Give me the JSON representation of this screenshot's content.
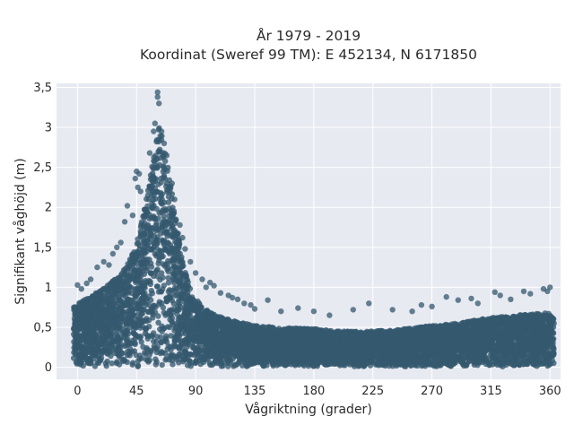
{
  "chart_data": {
    "type": "scatter",
    "title": [
      "År 1979 - 2019",
      "Koordinat (Sweref 99 TM): E 452134, N 6171850"
    ],
    "xlabel": "Vågriktning (grader)",
    "ylabel": "Signifikant våghöjd (m)",
    "xlim": [
      -16,
      368
    ],
    "ylim": [
      -0.15,
      3.55
    ],
    "x_ticks": [
      0,
      45,
      90,
      135,
      180,
      225,
      270,
      315,
      360
    ],
    "x_tick_labels": [
      "0",
      "45",
      "90",
      "135",
      "180",
      "225",
      "270",
      "315",
      "360"
    ],
    "y_ticks": [
      0,
      0.5,
      1,
      1.5,
      2,
      2.5,
      3,
      3.5
    ],
    "y_tick_labels": [
      "0",
      "0,5",
      "1",
      "1,5",
      "2",
      "2,5",
      "3",
      "3,5"
    ],
    "grid": true,
    "legend": "none",
    "marker_color": "#34586e",
    "plot_background": "#e8eaf2",
    "grid_color": "#ffffff",
    "density_envelope": {
      "x": [
        -3,
        0,
        10,
        20,
        30,
        40,
        45,
        50,
        55,
        60,
        63,
        66,
        70,
        75,
        80,
        85,
        90,
        100,
        110,
        120,
        135,
        150,
        180,
        200,
        225,
        250,
        270,
        290,
        315,
        340,
        360,
        363
      ],
      "y_max": [
        0.75,
        0.8,
        0.88,
        1.0,
        1.12,
        1.35,
        1.55,
        1.9,
        2.35,
        2.85,
        3.05,
        2.8,
        2.4,
        1.85,
        1.35,
        1.05,
        0.85,
        0.7,
        0.62,
        0.58,
        0.52,
        0.5,
        0.48,
        0.45,
        0.45,
        0.48,
        0.52,
        0.55,
        0.62,
        0.66,
        0.68,
        0.6
      ],
      "y_min": 0.01
    },
    "outliers": [
      {
        "x": 61,
        "y": 3.44
      },
      {
        "x": 61,
        "y": 3.38
      },
      {
        "x": 62,
        "y": 3.3
      },
      {
        "x": 59,
        "y": 3.05
      },
      {
        "x": 58,
        "y": 2.95
      },
      {
        "x": 64,
        "y": 2.95
      },
      {
        "x": 66,
        "y": 2.8
      },
      {
        "x": 55,
        "y": 2.68
      },
      {
        "x": 68,
        "y": 2.65
      },
      {
        "x": 45,
        "y": 2.45
      },
      {
        "x": 47,
        "y": 2.42
      },
      {
        "x": 44,
        "y": 2.36
      },
      {
        "x": 46,
        "y": 2.25
      },
      {
        "x": 48,
        "y": 2.2
      },
      {
        "x": 72,
        "y": 2.3
      },
      {
        "x": 74,
        "y": 2.1
      },
      {
        "x": 38,
        "y": 2.02
      },
      {
        "x": 42,
        "y": 1.9
      },
      {
        "x": 36,
        "y": 1.82
      },
      {
        "x": 78,
        "y": 1.78
      },
      {
        "x": 80,
        "y": 1.62
      },
      {
        "x": 30,
        "y": 1.5
      },
      {
        "x": 33,
        "y": 1.56
      },
      {
        "x": 27,
        "y": 1.42
      },
      {
        "x": 82,
        "y": 1.48
      },
      {
        "x": 86,
        "y": 1.32
      },
      {
        "x": 20,
        "y": 1.32
      },
      {
        "x": 24,
        "y": 1.28
      },
      {
        "x": 15,
        "y": 1.25
      },
      {
        "x": 10,
        "y": 1.1
      },
      {
        "x": 7,
        "y": 1.05
      },
      {
        "x": 0,
        "y": 1.03
      },
      {
        "x": 3,
        "y": 0.98
      },
      {
        "x": 90,
        "y": 1.18
      },
      {
        "x": 95,
        "y": 1.1
      },
      {
        "x": 101,
        "y": 1.06
      },
      {
        "x": 104,
        "y": 1.02
      },
      {
        "x": 98,
        "y": 1.0
      },
      {
        "x": 109,
        "y": 0.93
      },
      {
        "x": 115,
        "y": 0.9
      },
      {
        "x": 118,
        "y": 0.87
      },
      {
        "x": 122,
        "y": 0.85
      },
      {
        "x": 127,
        "y": 0.8
      },
      {
        "x": 132,
        "y": 0.78
      },
      {
        "x": 135,
        "y": 0.73
      },
      {
        "x": 145,
        "y": 0.84
      },
      {
        "x": 155,
        "y": 0.7
      },
      {
        "x": 168,
        "y": 0.74
      },
      {
        "x": 180,
        "y": 0.7
      },
      {
        "x": 192,
        "y": 0.65
      },
      {
        "x": 210,
        "y": 0.72
      },
      {
        "x": 222,
        "y": 0.8
      },
      {
        "x": 240,
        "y": 0.72
      },
      {
        "x": 255,
        "y": 0.7
      },
      {
        "x": 262,
        "y": 0.78
      },
      {
        "x": 270,
        "y": 0.76
      },
      {
        "x": 281,
        "y": 0.88
      },
      {
        "x": 290,
        "y": 0.84
      },
      {
        "x": 300,
        "y": 0.86
      },
      {
        "x": 305,
        "y": 0.8
      },
      {
        "x": 318,
        "y": 0.94
      },
      {
        "x": 322,
        "y": 0.9
      },
      {
        "x": 330,
        "y": 0.85
      },
      {
        "x": 340,
        "y": 0.95
      },
      {
        "x": 345,
        "y": 0.92
      },
      {
        "x": 355,
        "y": 0.98
      },
      {
        "x": 358,
        "y": 0.95
      },
      {
        "x": 360,
        "y": 1.0
      }
    ]
  }
}
